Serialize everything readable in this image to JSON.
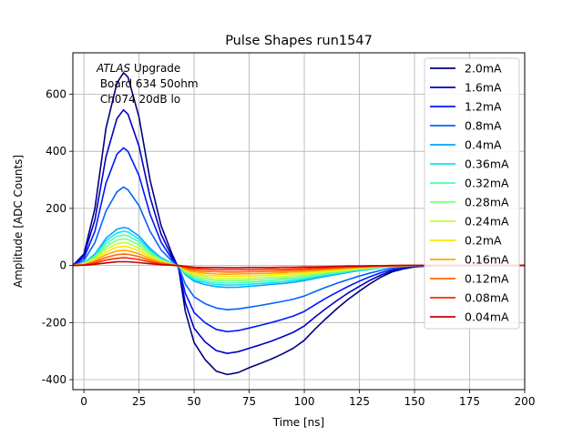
{
  "chart_data": {
    "type": "line",
    "title": "Pulse Shapes run1547",
    "xlabel": "Time [ns]",
    "ylabel": "Amplitude [ADC Counts]",
    "xlim": [
      -5,
      200
    ],
    "ylim": [
      -435,
      745
    ],
    "xticks": [
      0,
      25,
      50,
      75,
      100,
      125,
      150,
      175,
      200
    ],
    "yticks": [
      -400,
      -200,
      0,
      200,
      400,
      600
    ],
    "grid": true,
    "legend_position": "top-right",
    "annotation": {
      "atlas": "ATLAS",
      "upgrade": " Upgrade",
      "line2": " Board 634 50ohm",
      "line3": " Ch074 20dB lo"
    },
    "x": [
      -5,
      0,
      5,
      10,
      15,
      18,
      20,
      25,
      30,
      35,
      40,
      43,
      46,
      50,
      55,
      60,
      65,
      70,
      75,
      80,
      85,
      90,
      95,
      100,
      105,
      110,
      115,
      120,
      125,
      130,
      135,
      140,
      145,
      150,
      155,
      160,
      170,
      180,
      190,
      200
    ],
    "series": [
      {
        "name": "2.0mA",
        "color": "#00007f",
        "values": [
          0,
          40,
          200,
          480,
          640,
          675,
          660,
          520,
          300,
          140,
          40,
          -10,
          -160,
          -270,
          -330,
          -370,
          -382,
          -375,
          -358,
          -343,
          -328,
          -310,
          -290,
          -262,
          -222,
          -185,
          -150,
          -118,
          -90,
          -63,
          -40,
          -22,
          -12,
          -5,
          -2,
          0,
          0,
          0,
          0,
          0
        ]
      },
      {
        "name": "1.6mA",
        "color": "#0000c4",
        "values": [
          0,
          35,
          160,
          380,
          515,
          545,
          530,
          418,
          240,
          110,
          30,
          -8,
          -130,
          -220,
          -268,
          -298,
          -308,
          -302,
          -290,
          -278,
          -265,
          -250,
          -234,
          -212,
          -180,
          -150,
          -122,
          -96,
          -73,
          -51,
          -33,
          -18,
          -10,
          -4,
          -2,
          0,
          0,
          0,
          0,
          0
        ]
      },
      {
        "name": "1.2mA",
        "color": "#0016ff",
        "values": [
          0,
          26,
          120,
          288,
          390,
          412,
          400,
          315,
          180,
          82,
          22,
          -6,
          -97,
          -165,
          -201,
          -224,
          -232,
          -228,
          -219,
          -210,
          -200,
          -189,
          -177,
          -161,
          -137,
          -114,
          -93,
          -73,
          -55,
          -39,
          -25,
          -14,
          -7,
          -3,
          -1,
          0,
          0,
          0,
          0,
          0
        ]
      },
      {
        "name": "0.8mA",
        "color": "#0064ff",
        "values": [
          0,
          17,
          80,
          190,
          258,
          275,
          265,
          210,
          120,
          55,
          15,
          -4,
          -65,
          -110,
          -134,
          -149,
          -155,
          -152,
          -146,
          -140,
          -133,
          -126,
          -118,
          -107,
          -91,
          -76,
          -62,
          -49,
          -37,
          -26,
          -17,
          -9,
          -5,
          -2,
          -1,
          0,
          0,
          0,
          0,
          0
        ]
      },
      {
        "name": "0.4mA",
        "color": "#00a4ff",
        "values": [
          0,
          8,
          40,
          95,
          127,
          133,
          130,
          103,
          60,
          27,
          7,
          -2,
          -32,
          -55,
          -67,
          -74,
          -77,
          -76,
          -73,
          -70,
          -66,
          -63,
          -59,
          -53,
          -45,
          -38,
          -31,
          -24,
          -18,
          -13,
          -8,
          -5,
          -2,
          -1,
          0,
          0,
          0,
          0,
          0,
          0
        ]
      },
      {
        "name": "0.36mA",
        "color": "#0de5f2",
        "values": [
          0,
          7,
          36,
          86,
          114,
          120,
          117,
          93,
          54,
          24,
          6,
          -2,
          -29,
          -50,
          -60,
          -67,
          -69,
          -68,
          -66,
          -63,
          -60,
          -57,
          -53,
          -48,
          -41,
          -34,
          -28,
          -22,
          -16,
          -12,
          -7,
          -4,
          -2,
          -1,
          0,
          0,
          0,
          0,
          0,
          0
        ]
      },
      {
        "name": "0.32mA",
        "color": "#49ffad",
        "values": [
          0,
          6,
          32,
          76,
          102,
          107,
          104,
          83,
          48,
          21,
          5,
          -2,
          -26,
          -44,
          -54,
          -60,
          -62,
          -61,
          -59,
          -56,
          -53,
          -50,
          -47,
          -43,
          -36,
          -30,
          -25,
          -19,
          -14,
          -10,
          -6,
          -3,
          -2,
          0,
          0,
          0,
          0,
          0,
          0,
          0
        ]
      },
      {
        "name": "0.28mA",
        "color": "#7dff7a",
        "values": [
          0,
          6,
          28,
          66,
          89,
          93,
          91,
          72,
          42,
          19,
          5,
          -1,
          -22,
          -38,
          -47,
          -52,
          -54,
          -53,
          -51,
          -49,
          -46,
          -44,
          -41,
          -37,
          -32,
          -27,
          -22,
          -17,
          -13,
          -9,
          -6,
          -3,
          -1,
          0,
          0,
          0,
          0,
          0,
          0,
          0
        ]
      },
      {
        "name": "0.24mA",
        "color": "#c1ff36",
        "values": [
          0,
          5,
          24,
          57,
          76,
          80,
          78,
          62,
          36,
          16,
          4,
          -1,
          -19,
          -33,
          -40,
          -45,
          -46,
          -45,
          -44,
          -42,
          -40,
          -38,
          -35,
          -32,
          -27,
          -23,
          -19,
          -15,
          -11,
          -8,
          -5,
          -3,
          -1,
          0,
          0,
          0,
          0,
          0,
          0,
          0
        ]
      },
      {
        "name": "0.2mA",
        "color": "#ffe600",
        "values": [
          0,
          4,
          20,
          47,
          64,
          67,
          65,
          52,
          30,
          14,
          3,
          -1,
          -16,
          -28,
          -34,
          -37,
          -38,
          -38,
          -37,
          -35,
          -33,
          -31,
          -29,
          -26,
          -22,
          -19,
          -15,
          -12,
          -9,
          -6,
          -4,
          -2,
          -1,
          0,
          0,
          0,
          0,
          0,
          0,
          0
        ]
      },
      {
        "name": "0.16mA",
        "color": "#ffa700",
        "values": [
          0,
          3,
          16,
          38,
          51,
          53,
          52,
          41,
          24,
          11,
          3,
          -1,
          -13,
          -22,
          -27,
          -30,
          -31,
          -30,
          -29,
          -28,
          -27,
          -25,
          -23,
          -21,
          -18,
          -15,
          -12,
          -10,
          -7,
          -5,
          -3,
          -2,
          -1,
          0,
          0,
          0,
          0,
          0,
          0,
          0
        ]
      },
      {
        "name": "0.12mA",
        "color": "#ff6800",
        "values": [
          0,
          2,
          12,
          28,
          38,
          40,
          39,
          31,
          18,
          8,
          2,
          -1,
          -10,
          -17,
          -20,
          -22,
          -23,
          -23,
          -22,
          -21,
          -20,
          -19,
          -18,
          -16,
          -14,
          -11,
          -9,
          -7,
          -5,
          -4,
          -2,
          -1,
          0,
          0,
          0,
          0,
          0,
          0,
          0,
          0
        ]
      },
      {
        "name": "0.08mA",
        "color": "#ff2500",
        "values": [
          0,
          2,
          8,
          19,
          25,
          27,
          26,
          21,
          12,
          5,
          1,
          0,
          -6,
          -11,
          -13,
          -15,
          -15,
          -15,
          -15,
          -14,
          -13,
          -13,
          -12,
          -11,
          -9,
          -8,
          -6,
          -5,
          -4,
          -3,
          -2,
          -1,
          0,
          0,
          0,
          0,
          0,
          0,
          0,
          0
        ]
      },
      {
        "name": "0.04mA",
        "color": "#c40000",
        "values": [
          0,
          1,
          4,
          9,
          13,
          13,
          13,
          10,
          6,
          3,
          1,
          0,
          -3,
          -6,
          -7,
          -7,
          -8,
          -8,
          -7,
          -7,
          -7,
          -6,
          -6,
          -5,
          -5,
          -4,
          -3,
          -2,
          -2,
          -1,
          -1,
          0,
          0,
          0,
          0,
          0,
          0,
          0,
          0,
          0
        ]
      }
    ]
  }
}
